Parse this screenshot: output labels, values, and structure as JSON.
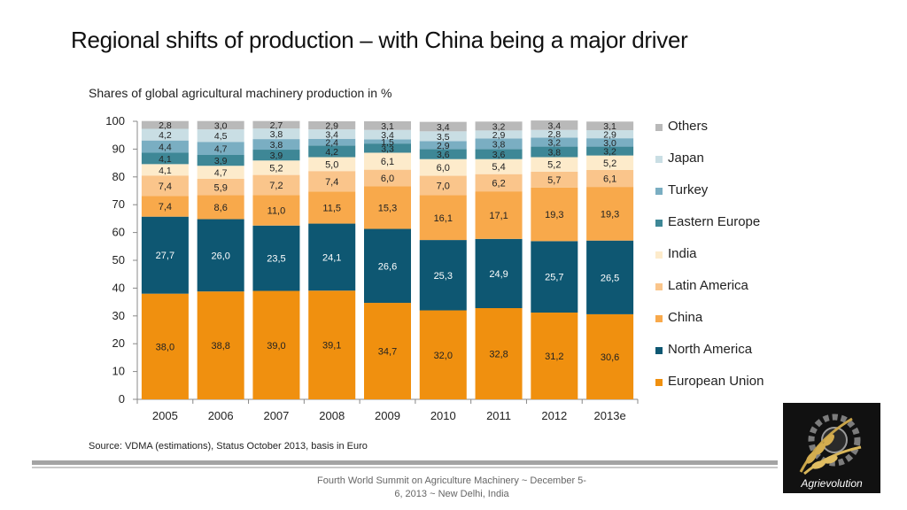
{
  "slide": {
    "title": "Regional shifts of production – with China being a major driver",
    "subtitle": "Shares of global agricultural machinery production in %",
    "source": "Source: VDMA (estimations), Status October 2013, basis in Euro",
    "footer_line1": "Fourth World Summit on Agriculture Machinery ~ December 5-",
    "footer_line2": "6, 2013 ~ New Delhi, India",
    "logo_text": "Agrievolution"
  },
  "chart_data": {
    "type": "bar",
    "stacked": true,
    "title": "Shares of global agricultural machinery production in %",
    "xlabel": "",
    "ylabel": "",
    "ylim": [
      0,
      100
    ],
    "yticks": [
      0,
      10,
      20,
      30,
      40,
      50,
      60,
      70,
      80,
      90,
      100
    ],
    "grid": false,
    "legend_position": "right",
    "categories": [
      "2005",
      "2006",
      "2007",
      "2008",
      "2009",
      "2010",
      "2011",
      "2012",
      "2013e"
    ],
    "series": [
      {
        "name": "European Union",
        "color": "#F0900F",
        "values": [
          38.0,
          38.8,
          39.0,
          39.1,
          34.7,
          32.0,
          32.8,
          31.2,
          30.6
        ],
        "labels": [
          "38,0",
          "38,8",
          "39,0",
          "39,1",
          "34,7",
          "32,0",
          "32,8",
          "31,2",
          "30,6"
        ],
        "label_color": "#222222"
      },
      {
        "name": "North America",
        "color": "#0E5772",
        "values": [
          27.7,
          26.0,
          23.5,
          24.1,
          26.6,
          25.3,
          24.9,
          25.7,
          26.5
        ],
        "labels": [
          "27,7",
          "26,0",
          "23,5",
          "24,1",
          "26,6",
          "25,3",
          "24,9",
          "25,7",
          "26,5"
        ],
        "label_color": "#ffffff"
      },
      {
        "name": "China",
        "color": "#F8A94B",
        "values": [
          7.4,
          8.6,
          11.0,
          11.5,
          15.3,
          16.1,
          17.1,
          19.3,
          19.3
        ],
        "labels": [
          "7,4",
          "8,6",
          "11,0",
          "11,5",
          "15,3",
          "16,1",
          "17,1",
          "19,3",
          "19,3"
        ],
        "label_color": "#222222"
      },
      {
        "name": "Latin America",
        "color": "#FAC58B",
        "values": [
          7.4,
          5.9,
          7.2,
          7.4,
          6.0,
          7.0,
          6.2,
          5.7,
          6.1
        ],
        "labels": [
          "7,4",
          "5,9",
          "7,2",
          "7,4",
          "6,0",
          "7,0",
          "6,2",
          "5,7",
          "6,1"
        ],
        "label_color": "#222222"
      },
      {
        "name": "India",
        "color": "#FDEBCB",
        "values": [
          4.1,
          4.7,
          5.2,
          5.0,
          6.1,
          6.0,
          5.4,
          5.2,
          5.2
        ],
        "labels": [
          "4,1",
          "4,7",
          "5,2",
          "5,0",
          "6,1",
          "6,0",
          "5,4",
          "5,2",
          "5,2"
        ],
        "label_color": "#222222"
      },
      {
        "name": "Eastern Europe",
        "color": "#3E8796",
        "values": [
          4.1,
          3.9,
          3.9,
          4.2,
          3.3,
          3.6,
          3.6,
          3.8,
          3.2
        ],
        "labels": [
          "4,1",
          "3,9",
          "3,9",
          "4,2",
          "3,3",
          "3,6",
          "3,6",
          "3,8",
          "3,2"
        ],
        "label_color": "#222222"
      },
      {
        "name": "Turkey",
        "color": "#7AAEC2",
        "values": [
          4.4,
          4.7,
          3.8,
          2.4,
          1.5,
          2.9,
          3.8,
          3.2,
          3.0
        ],
        "labels": [
          "4,4",
          "4,7",
          "3,8",
          "2,4",
          "1,5",
          "2,9",
          "3,8",
          "3,2",
          "3,0"
        ],
        "label_color": "#222222"
      },
      {
        "name": "Japan",
        "color": "#C9DEE4",
        "values": [
          4.2,
          4.5,
          3.8,
          3.4,
          3.4,
          3.5,
          2.9,
          2.8,
          2.9
        ],
        "labels": [
          "4,2",
          "4,5",
          "3,8",
          "3,4",
          "3,4",
          "3,5",
          "2,9",
          "2,8",
          "2,9"
        ],
        "label_color": "#222222"
      },
      {
        "name": "Others",
        "color": "#B9B9B9",
        "values": [
          2.8,
          3.0,
          2.7,
          2.9,
          3.1,
          3.4,
          3.2,
          3.4,
          3.1
        ],
        "labels": [
          "2,8",
          "3,0",
          "2,7",
          "2,9",
          "3,1",
          "3,4",
          "3,2",
          "3,4",
          "3,1"
        ],
        "label_color": "#222222"
      }
    ]
  }
}
